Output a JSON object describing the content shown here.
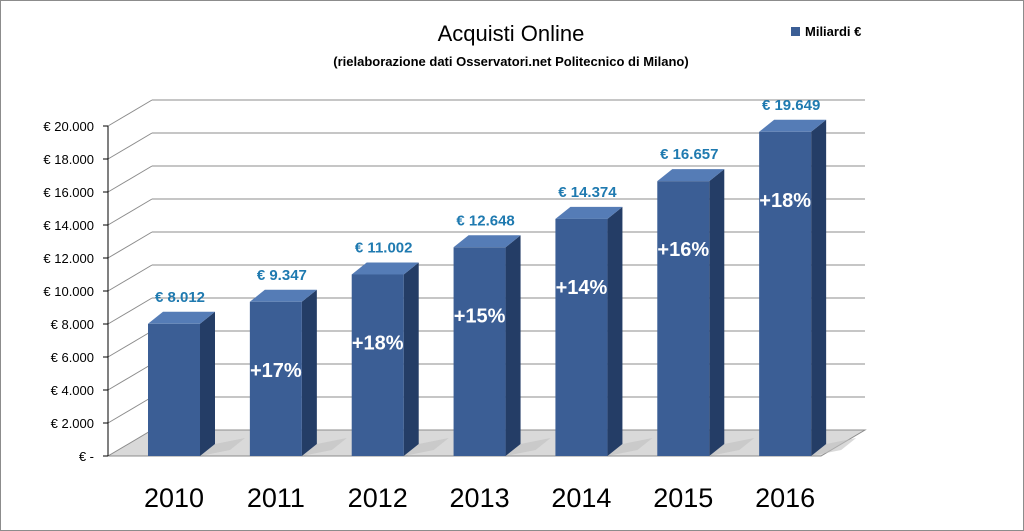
{
  "chart_data": {
    "type": "bar",
    "title": "Acquisti Online",
    "subtitle": "(rielaborazione dati  Osservatori.net Politecnico di Milano)",
    "categories": [
      "2010",
      "2011",
      "2012",
      "2013",
      "2014",
      "2015",
      "2016"
    ],
    "series": [
      {
        "name": "Miliardi €",
        "values": [
          8012,
          9347,
          11002,
          12648,
          14374,
          16657,
          19649
        ],
        "value_labels": [
          "€ 8.012",
          "€ 9.347",
          "€ 11.002",
          "€ 12.648",
          "€ 14.374",
          "€ 16.657",
          "€ 19.649"
        ],
        "growth_labels": [
          "",
          "+17%",
          "+18%",
          "+15%",
          "+14%",
          "+16%",
          "+18%"
        ]
      }
    ],
    "ylim": [
      0,
      20000
    ],
    "yticks": [
      0,
      2000,
      4000,
      6000,
      8000,
      10000,
      12000,
      14000,
      16000,
      18000,
      20000
    ],
    "ytick_labels": [
      "€ -",
      "€ 2.000",
      "€ 4.000",
      "€ 6.000",
      "€ 8.000",
      "€ 10.000",
      "€ 12.000",
      "€ 14.000",
      "€ 16.000",
      "€ 18.000",
      "€ 20.000"
    ],
    "grid": true,
    "legend_position": "top-right",
    "style": "3d-column",
    "colors": {
      "bar_front": "#3b5e95",
      "bar_side": "#243d66",
      "bar_top": "#557cb6",
      "value_label": "#1f7ab0",
      "growth_label": "#ffffff",
      "grid": "#8c8c8c",
      "floor": "#d9d9d9"
    }
  }
}
